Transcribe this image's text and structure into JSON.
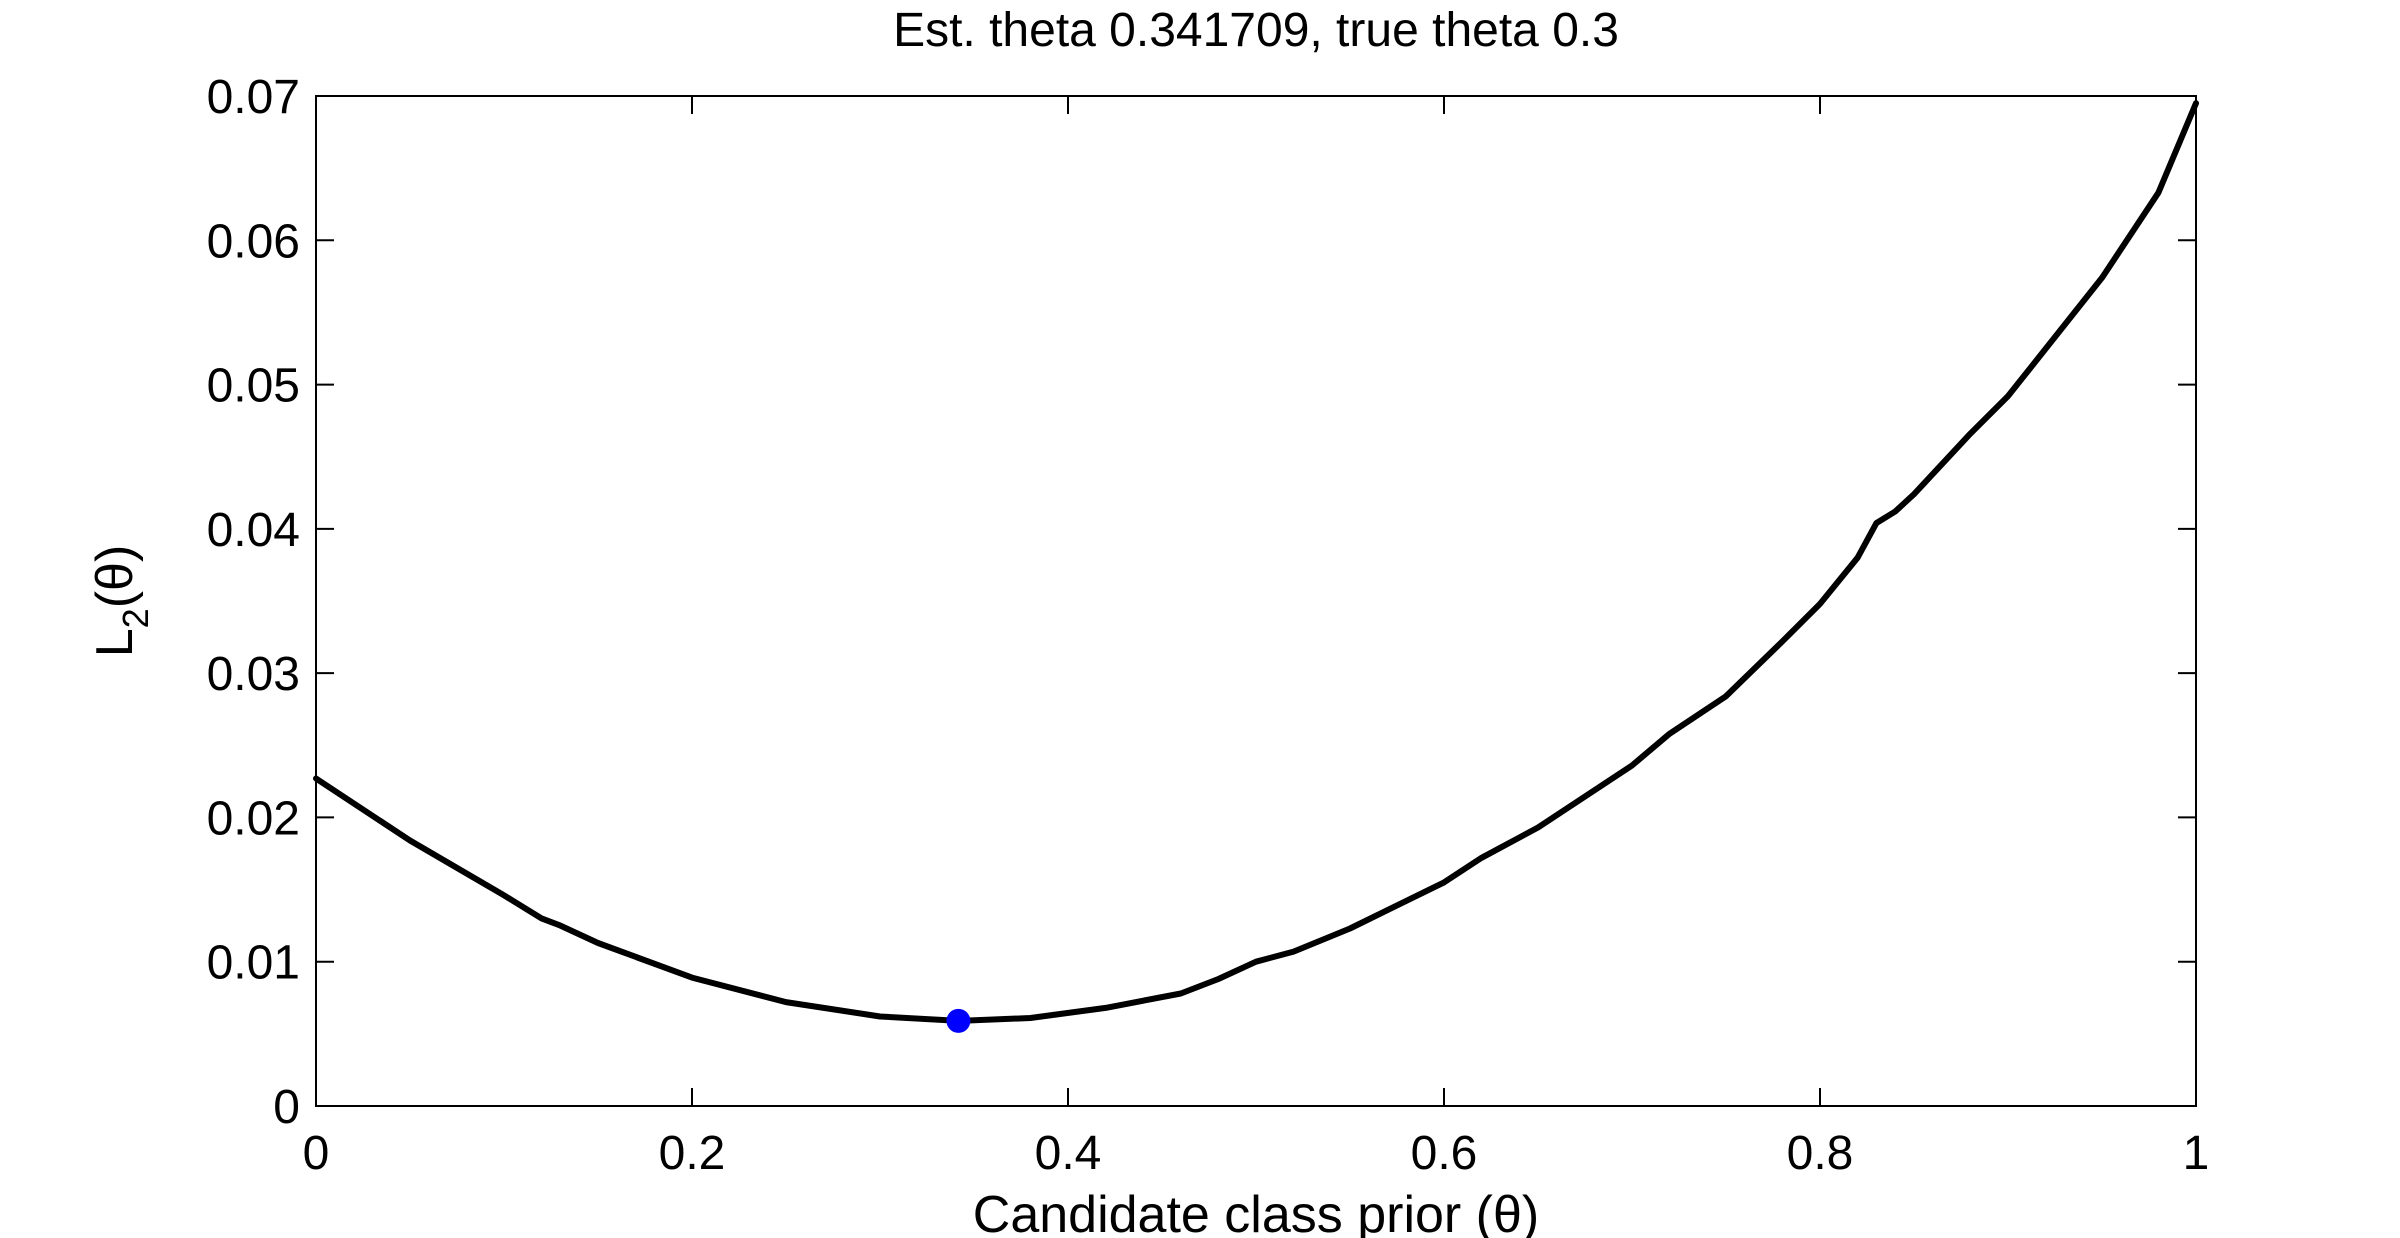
{
  "chart_data": {
    "type": "line",
    "title": "Est. theta 0.341709, true theta 0.3",
    "xlabel": "Candidate class prior (θ)",
    "ylabel": {
      "base": "L",
      "sub": "2",
      "tail": "(θ)"
    },
    "xlim": [
      0,
      1
    ],
    "ylim": [
      0,
      0.07
    ],
    "x_ticks": [
      0,
      0.2,
      0.4,
      0.6,
      0.8,
      1
    ],
    "x_tick_labels": [
      "0",
      "0.2",
      "0.4",
      "0.6",
      "0.8",
      "1"
    ],
    "y_ticks": [
      0,
      0.01,
      0.02,
      0.03,
      0.04,
      0.05,
      0.06,
      0.07
    ],
    "y_tick_labels": [
      "0",
      "0.01",
      "0.02",
      "0.03",
      "0.04",
      "0.05",
      "0.06",
      "0.07"
    ],
    "grid": false,
    "series": [
      {
        "color": "#000000",
        "x": [
          0,
          0.05,
          0.1,
          0.12,
          0.13,
          0.15,
          0.2,
          0.25,
          0.3,
          0.342,
          0.38,
          0.42,
          0.46,
          0.48,
          0.5,
          0.52,
          0.55,
          0.6,
          0.62,
          0.65,
          0.7,
          0.72,
          0.75,
          0.78,
          0.8,
          0.82,
          0.83,
          0.84,
          0.85,
          0.88,
          0.9,
          0.95,
          0.98,
          1.0
        ],
        "y": [
          0.0227,
          0.0184,
          0.0146,
          0.013,
          0.0125,
          0.0113,
          0.0089,
          0.0072,
          0.0062,
          0.0059,
          0.0061,
          0.0068,
          0.0078,
          0.0088,
          0.01,
          0.0107,
          0.0123,
          0.0155,
          0.0172,
          0.0193,
          0.0236,
          0.0258,
          0.0284,
          0.0322,
          0.0348,
          0.038,
          0.0404,
          0.0412,
          0.0424,
          0.0466,
          0.0492,
          0.0574,
          0.0633,
          0.0695
        ]
      }
    ],
    "marker": {
      "x": 0.341709,
      "y": 0.0059,
      "color": "#0000ff"
    }
  }
}
